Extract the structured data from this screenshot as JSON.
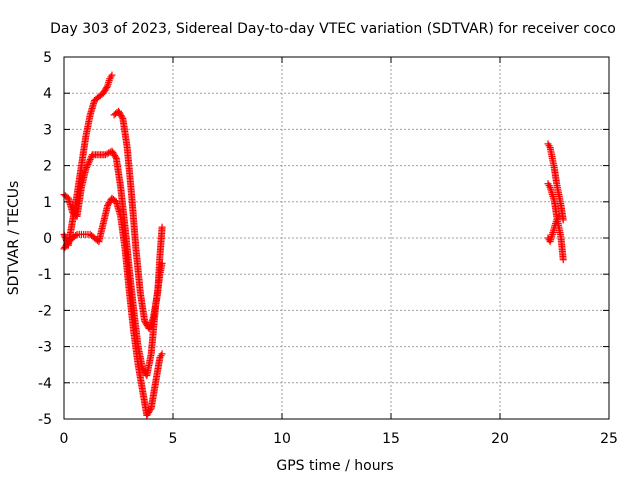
{
  "chart_data": {
    "type": "scatter",
    "title": "Day 303 of 2023, Sidereal Day-to-day VTEC variation (SDTVAR) for receiver coco",
    "xlabel": "GPS time / hours",
    "ylabel": "SDTVAR / TECUs",
    "xlim": [
      0,
      25
    ],
    "ylim": [
      -5,
      5
    ],
    "x_ticks": [
      0,
      5,
      10,
      15,
      20,
      25
    ],
    "y_ticks": [
      -5,
      -4,
      -3,
      -2,
      -1,
      0,
      1,
      2,
      3,
      4,
      5
    ],
    "x_tick_labels": [
      "0",
      "5",
      "10",
      "15",
      "20",
      "25"
    ],
    "y_tick_labels": [
      "-5",
      "-4",
      "-3",
      "-2",
      "-1",
      "0",
      "1",
      "2",
      "3",
      "4",
      "5"
    ],
    "grid": true,
    "legend": "none",
    "marker_color": "#ff0000",
    "marker": "plus",
    "series": [
      {
        "x": [
          0.0,
          0.2,
          0.4,
          0.6,
          0.8,
          1.0,
          1.2,
          1.4,
          1.6,
          1.8,
          2.0,
          2.1,
          2.2
        ],
        "values": [
          0.1,
          -0.2,
          0.5,
          1.2,
          2.0,
          2.8,
          3.4,
          3.8,
          3.9,
          4.0,
          4.2,
          4.4,
          4.5
        ]
      },
      {
        "x": [
          0.0,
          0.2,
          0.4,
          0.6,
          0.8,
          1.0,
          1.3,
          1.6,
          1.9,
          2.2,
          2.4,
          2.6,
          2.8,
          3.0,
          3.2,
          3.4,
          3.6,
          3.8,
          4.0,
          4.2,
          4.4,
          4.5
        ],
        "values": [
          1.2,
          1.1,
          0.7,
          0.6,
          1.4,
          1.9,
          2.3,
          2.3,
          2.3,
          2.4,
          2.2,
          1.4,
          0.3,
          -0.9,
          -2.0,
          -3.0,
          -3.6,
          -3.8,
          -3.2,
          -1.9,
          -1.0,
          -0.7
        ]
      },
      {
        "x": [
          0.0,
          0.2,
          0.4,
          0.6,
          0.8,
          1.0,
          1.2,
          1.4,
          1.6,
          1.8,
          2.0,
          2.2,
          2.4,
          2.6,
          2.8,
          3.0,
          3.2,
          3.4,
          3.6,
          3.8,
          4.0,
          4.2,
          4.4,
          4.5
        ],
        "values": [
          -0.3,
          -0.1,
          0.0,
          0.1,
          0.1,
          0.1,
          0.1,
          0.0,
          -0.1,
          0.4,
          0.9,
          1.1,
          1.0,
          0.6,
          -0.3,
          -1.5,
          -2.6,
          -3.5,
          -4.2,
          -4.9,
          -4.7,
          -4.0,
          -3.3,
          -3.2
        ]
      },
      {
        "x": [
          2.3,
          2.5,
          2.7,
          2.9,
          3.1,
          3.3,
          3.5,
          3.7,
          3.9,
          4.1,
          4.3,
          4.4,
          4.5
        ],
        "values": [
          3.4,
          3.5,
          3.3,
          2.5,
          1.2,
          -0.3,
          -1.5,
          -2.3,
          -2.5,
          -2.2,
          -1.5,
          -0.5,
          0.3
        ]
      },
      {
        "x": [
          22.2,
          22.3,
          22.4,
          22.5,
          22.6,
          22.7,
          22.8,
          22.9
        ],
        "values": [
          2.6,
          2.5,
          2.2,
          1.9,
          1.5,
          1.2,
          0.9,
          0.5
        ]
      },
      {
        "x": [
          22.2,
          22.3,
          22.4,
          22.5,
          22.6,
          22.7,
          22.8,
          22.9
        ],
        "values": [
          1.5,
          1.4,
          1.2,
          1.0,
          0.6,
          0.3,
          0.0,
          -0.6
        ]
      },
      {
        "x": [
          22.2,
          22.3,
          22.4,
          22.5,
          22.6,
          22.7
        ],
        "values": [
          0.0,
          -0.1,
          0.1,
          0.3,
          0.5,
          0.6
        ]
      }
    ]
  }
}
